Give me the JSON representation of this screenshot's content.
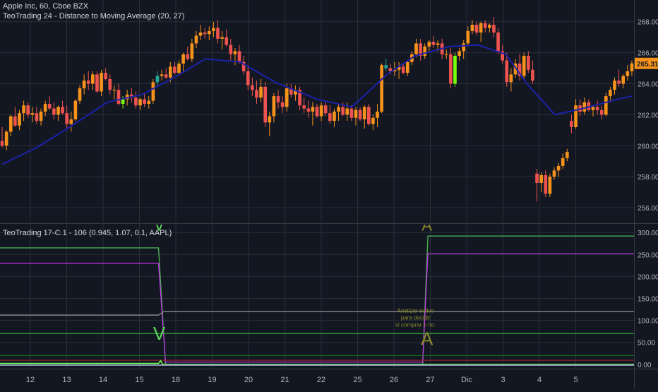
{
  "chart_data": [
    {
      "type": "candlestick",
      "title": "Apple Inc, 60, Cboe BZX",
      "indicator_label": "TeoTrading 24 - Distance to Moving Average (20, 27)",
      "x_ticks": [
        "12",
        "13",
        "14",
        "15",
        "18",
        "19",
        "20",
        "21",
        "22",
        "25",
        "26",
        "27",
        "Dic",
        "3",
        "4",
        "5"
      ],
      "y_ticks": [
        "256.00",
        "258.00",
        "260.00",
        "262.00",
        "264.00",
        "266.00",
        "268.00"
      ],
      "ylim": [
        255,
        269.4
      ],
      "last_price": "265.31",
      "grid": true,
      "colors": {
        "up": "#f7931a",
        "down": "#ef5350",
        "neutral": "#26a69a",
        "highlight": "#76ff03",
        "ma": "#1c21a8",
        "price_badge": "#f7931a"
      },
      "candles": [
        [
          260.3,
          261.2,
          259.9,
          260.0
        ],
        [
          260.0,
          261.0,
          259.7,
          260.9
        ],
        [
          260.9,
          262.0,
          260.6,
          261.9
        ],
        [
          261.9,
          262.5,
          261.2,
          261.3
        ],
        [
          261.3,
          262.3,
          261.0,
          262.1
        ],
        [
          262.1,
          262.9,
          261.6,
          262.6
        ],
        [
          262.6,
          262.8,
          261.8,
          262.0
        ],
        [
          262.0,
          262.5,
          261.5,
          262.1
        ],
        [
          262.1,
          262.5,
          261.4,
          261.6
        ],
        [
          261.6,
          262.4,
          261.3,
          262.2
        ],
        [
          262.2,
          262.9,
          261.9,
          262.7
        ],
        [
          262.7,
          263.2,
          262.3,
          262.4
        ],
        [
          262.4,
          262.8,
          261.7,
          262.0
        ],
        [
          262.0,
          262.6,
          261.6,
          262.5
        ],
        [
          262.5,
          262.9,
          262.0,
          262.1
        ],
        [
          262.1,
          262.6,
          261.1,
          261.4
        ],
        [
          261.4,
          262.2,
          260.9,
          261.7
        ],
        [
          261.7,
          263.0,
          261.6,
          262.9
        ],
        [
          262.9,
          263.9,
          262.7,
          263.7
        ],
        [
          263.7,
          264.6,
          263.3,
          264.2
        ],
        [
          264.2,
          264.8,
          263.6,
          264.0
        ],
        [
          264.0,
          264.8,
          263.6,
          264.6
        ],
        [
          264.6,
          264.8,
          263.4,
          263.5
        ],
        [
          263.5,
          264.9,
          263.2,
          264.7
        ],
        [
          264.7,
          265.0,
          264.2,
          264.3
        ],
        [
          264.3,
          264.6,
          263.3,
          263.6
        ],
        [
          263.6,
          263.9,
          263.0,
          263.6
        ],
        [
          263.6,
          264.0,
          262.6,
          262.7
        ],
        [
          262.7,
          263.2,
          262.4,
          263.0
        ],
        [
          263.0,
          263.6,
          262.6,
          263.3
        ],
        [
          263.3,
          263.7,
          262.8,
          263.1
        ],
        [
          263.1,
          263.5,
          262.4,
          262.6
        ],
        [
          262.6,
          263.1,
          262.3,
          263.0
        ],
        [
          263.0,
          263.4,
          262.5,
          262.7
        ],
        [
          262.7,
          263.2,
          262.4,
          262.9
        ],
        [
          262.9,
          264.3,
          262.7,
          264.1
        ],
        [
          264.1,
          264.8,
          263.8,
          264.5
        ],
        [
          264.5,
          264.9,
          264.2,
          264.6
        ],
        [
          264.6,
          265.0,
          264.3,
          264.4
        ],
        [
          264.4,
          265.4,
          264.1,
          265.1
        ],
        [
          265.1,
          265.4,
          264.6,
          264.7
        ],
        [
          264.7,
          265.5,
          264.5,
          265.3
        ],
        [
          265.3,
          266.0,
          264.8,
          265.9
        ],
        [
          265.9,
          266.4,
          265.5,
          265.6
        ],
        [
          265.6,
          266.9,
          265.4,
          266.6
        ],
        [
          266.6,
          267.4,
          266.3,
          267.1
        ],
        [
          267.1,
          267.8,
          266.8,
          267.3
        ],
        [
          267.3,
          267.6,
          266.9,
          267.2
        ],
        [
          267.2,
          267.7,
          266.8,
          267.4
        ],
        [
          267.4,
          268.0,
          267.0,
          267.6
        ],
        [
          267.6,
          268.1,
          266.6,
          266.9
        ],
        [
          266.9,
          267.4,
          266.2,
          267.0
        ],
        [
          267.0,
          267.5,
          266.4,
          266.5
        ],
        [
          266.5,
          266.9,
          265.5,
          265.9
        ],
        [
          265.9,
          266.3,
          265.2,
          266.1
        ],
        [
          266.1,
          266.5,
          265.3,
          265.4
        ],
        [
          265.4,
          265.8,
          264.6,
          264.8
        ],
        [
          264.8,
          265.2,
          263.6,
          263.9
        ],
        [
          263.9,
          264.4,
          263.2,
          263.6
        ],
        [
          263.6,
          264.2,
          262.7,
          263.1
        ],
        [
          263.1,
          264.3,
          262.8,
          263.8
        ],
        [
          263.8,
          264.1,
          261.2,
          261.5
        ],
        [
          261.5,
          262.2,
          260.6,
          261.9
        ],
        [
          261.9,
          263.4,
          261.5,
          263.2
        ],
        [
          263.2,
          263.6,
          262.4,
          262.8
        ],
        [
          262.8,
          263.2,
          262.1,
          262.5
        ],
        [
          262.5,
          264.0,
          262.2,
          263.7
        ],
        [
          263.7,
          264.0,
          263.1,
          263.3
        ],
        [
          263.3,
          263.9,
          262.9,
          263.6
        ],
        [
          263.6,
          263.8,
          262.3,
          262.6
        ],
        [
          262.6,
          263.1,
          262.1,
          262.4
        ],
        [
          262.4,
          262.9,
          261.8,
          262.2
        ],
        [
          262.2,
          262.8,
          261.3,
          262.5
        ],
        [
          262.5,
          262.7,
          261.8,
          261.9
        ],
        [
          261.9,
          262.8,
          261.6,
          262.6
        ],
        [
          262.6,
          262.8,
          261.9,
          262.1
        ],
        [
          262.1,
          262.6,
          261.4,
          261.6
        ],
        [
          261.6,
          262.4,
          261.2,
          262.2
        ],
        [
          262.2,
          262.7,
          261.6,
          262.5
        ],
        [
          262.5,
          262.8,
          261.9,
          262.0
        ],
        [
          262.0,
          262.8,
          261.6,
          262.4
        ],
        [
          262.4,
          262.6,
          261.6,
          261.8
        ],
        [
          261.8,
          262.5,
          261.3,
          262.3
        ],
        [
          262.3,
          262.5,
          261.6,
          261.7
        ],
        [
          261.7,
          262.6,
          261.1,
          262.5
        ],
        [
          262.5,
          262.7,
          261.3,
          261.4
        ],
        [
          261.4,
          262.0,
          261.0,
          261.8
        ],
        [
          261.8,
          262.7,
          261.2,
          262.2
        ],
        [
          262.2,
          265.3,
          262.1,
          265.2
        ],
        [
          265.2,
          265.6,
          264.8,
          265.0
        ],
        [
          265.0,
          265.3,
          264.6,
          264.8
        ],
        [
          264.8,
          265.4,
          264.5,
          264.9
        ],
        [
          264.9,
          265.4,
          264.3,
          265.1
        ],
        [
          265.1,
          265.3,
          264.6,
          264.7
        ],
        [
          264.7,
          265.5,
          264.5,
          265.4
        ],
        [
          265.4,
          266.1,
          265.2,
          265.9
        ],
        [
          265.9,
          266.9,
          265.7,
          266.6
        ],
        [
          266.6,
          266.9,
          265.5,
          265.8
        ],
        [
          265.8,
          266.6,
          265.6,
          266.4
        ],
        [
          266.4,
          266.8,
          266.1,
          266.7
        ],
        [
          266.7,
          267.1,
          266.3,
          266.5
        ],
        [
          266.5,
          266.8,
          266.1,
          266.6
        ],
        [
          266.6,
          266.9,
          265.6,
          265.9
        ],
        [
          265.9,
          266.2,
          265.6,
          265.9
        ],
        [
          265.9,
          266.3,
          263.7,
          264.0
        ],
        [
          264.0,
          266.0,
          263.8,
          265.8
        ],
        [
          265.8,
          266.3,
          265.5,
          266.1
        ],
        [
          266.1,
          266.8,
          265.6,
          266.6
        ],
        [
          266.6,
          267.7,
          266.4,
          267.4
        ],
        [
          267.4,
          268.1,
          267.2,
          267.8
        ],
        [
          267.8,
          268.0,
          267.1,
          267.3
        ],
        [
          267.3,
          268.0,
          266.7,
          267.9
        ],
        [
          267.9,
          268.1,
          267.3,
          267.6
        ],
        [
          267.6,
          267.9,
          267.3,
          267.8
        ],
        [
          267.8,
          268.3,
          267.0,
          267.3
        ],
        [
          267.3,
          267.6,
          265.9,
          266.1
        ],
        [
          266.1,
          266.5,
          265.3,
          265.5
        ],
        [
          265.5,
          266.0,
          263.8,
          264.1
        ],
        [
          264.1,
          265.0,
          263.5,
          264.6
        ],
        [
          264.6,
          265.6,
          264.4,
          265.3
        ],
        [
          265.3,
          265.9,
          264.2,
          264.5
        ],
        [
          264.5,
          266.0,
          264.3,
          265.8
        ],
        [
          265.8,
          266.1,
          264.7,
          264.9
        ],
        [
          264.9,
          265.5,
          264.0,
          264.2
        ],
        [
          258.2,
          258.5,
          256.4,
          257.6
        ],
        [
          257.6,
          258.3,
          257.0,
          258.1
        ],
        [
          258.1,
          258.4,
          256.7,
          256.9
        ],
        [
          256.9,
          258.2,
          256.7,
          258.0
        ],
        [
          258.0,
          258.6,
          257.8,
          258.4
        ],
        [
          258.4,
          258.9,
          258.0,
          258.7
        ],
        [
          258.7,
          259.5,
          258.5,
          259.2
        ],
        [
          259.2,
          259.8,
          259.0,
          259.6
        ],
        [
          261.6,
          262.0,
          260.8,
          261.2
        ],
        [
          261.2,
          263.0,
          261.1,
          262.6
        ],
        [
          262.6,
          263.0,
          261.9,
          262.2
        ],
        [
          262.2,
          263.1,
          262.0,
          262.8
        ],
        [
          262.8,
          263.0,
          262.2,
          262.3
        ],
        [
          262.3,
          262.6,
          261.9,
          262.5
        ],
        [
          262.5,
          262.9,
          262.0,
          262.3
        ],
        [
          262.3,
          262.6,
          261.7,
          262.0
        ],
        [
          262.0,
          263.4,
          261.9,
          263.2
        ],
        [
          263.2,
          263.8,
          262.8,
          263.6
        ],
        [
          263.6,
          264.4,
          263.3,
          264.2
        ],
        [
          264.2,
          264.9,
          263.8,
          264.0
        ],
        [
          264.0,
          264.6,
          263.7,
          264.5
        ],
        [
          264.5,
          265.2,
          264.2,
          264.8
        ],
        [
          264.8,
          265.5,
          264.5,
          265.31
        ]
      ],
      "ma": [
        [
          0,
          258.8
        ],
        [
          10,
          259.9
        ],
        [
          20,
          261.3
        ],
        [
          30,
          262.8
        ],
        [
          40,
          263.3
        ],
        [
          50,
          264.5
        ],
        [
          58,
          265.6
        ],
        [
          68,
          265.4
        ],
        [
          78,
          264.1
        ],
        [
          90,
          263.0
        ],
        [
          100,
          262.5
        ],
        [
          110,
          264.6
        ],
        [
          118,
          265.8
        ],
        [
          128,
          266.4
        ],
        [
          136,
          266.5
        ],
        [
          144,
          265.9
        ],
        [
          150,
          264.0
        ],
        [
          158,
          262.0
        ],
        [
          166,
          262.4
        ],
        [
          176,
          263.0
        ],
        [
          180,
          263.2
        ]
      ]
    },
    {
      "type": "line",
      "title": "TeoTrading 17-C.1 - 106 (0.945, 1.07, 0.1, AAPL)",
      "y_ticks": [
        "0.00",
        "50.00",
        "100.00",
        "150.00",
        "200.00",
        "250.00",
        "300.00"
      ],
      "ylim": [
        -10,
        318
      ],
      "x_domain": [
        0,
        180
      ],
      "series": [
        {
          "color": "#4caf50",
          "width": 1.4,
          "points": [
            [
              0,
              265
            ],
            [
              45,
              265
            ],
            [
              47,
              0
            ],
            [
              120,
              0
            ],
            [
              121.5,
              292
            ],
            [
              180,
              292
            ]
          ]
        },
        {
          "color": "#c72ff2",
          "width": 1.2,
          "points": [
            [
              0,
              230
            ],
            [
              45,
              230
            ],
            [
              47,
              5
            ],
            [
              120,
              5
            ],
            [
              121.5,
              252
            ],
            [
              180,
              252
            ]
          ]
        },
        {
          "color": "#888888",
          "width": 1.4,
          "points": [
            [
              0,
              112
            ],
            [
              45,
              112
            ],
            [
              46.5,
              120
            ],
            [
              180,
              120
            ]
          ]
        },
        {
          "color": "#2aaf2a",
          "width": 1.2,
          "points": [
            [
              0,
              70
            ],
            [
              180,
              70
            ]
          ]
        },
        {
          "color": "#1b7c1b",
          "width": 1.0,
          "points": [
            [
              0,
              20
            ],
            [
              180,
              20
            ]
          ]
        },
        {
          "color": "#9c2a2a",
          "width": 1.0,
          "points": [
            [
              0,
              9
            ],
            [
              180,
              9
            ]
          ]
        },
        {
          "color": "#66ff55",
          "width": 1.6,
          "points": [
            [
              0,
              2
            ],
            [
              45,
              2
            ],
            [
              45.6,
              8
            ],
            [
              46.2,
              0
            ],
            [
              180,
              0
            ]
          ]
        },
        {
          "color": "#8a8fb0",
          "width": 2.0,
          "points": [
            [
              0,
              -2
            ],
            [
              180,
              -2
            ]
          ]
        }
      ],
      "markers": [
        {
          "text": "V",
          "x": 45.2,
          "y": 72,
          "color": "#5cd65c",
          "size": 26
        },
        {
          "text": "V",
          "x": 45.2,
          "y": 318,
          "color": "#5cd65c",
          "size": 22
        },
        {
          "text": "A",
          "x": 121.2,
          "y": 60,
          "color": "#8a8a2a",
          "size": 26
        },
        {
          "text": "A",
          "x": 121.2,
          "y": 318,
          "color": "#8a8a2a",
          "size": 22
        }
      ],
      "annotation": {
        "lines": [
          "Analizar activo",
          "para decidir",
          "si comprar o no."
        ],
        "x": 118,
        "y": 118,
        "color": "#8a8a2a"
      }
    }
  ]
}
